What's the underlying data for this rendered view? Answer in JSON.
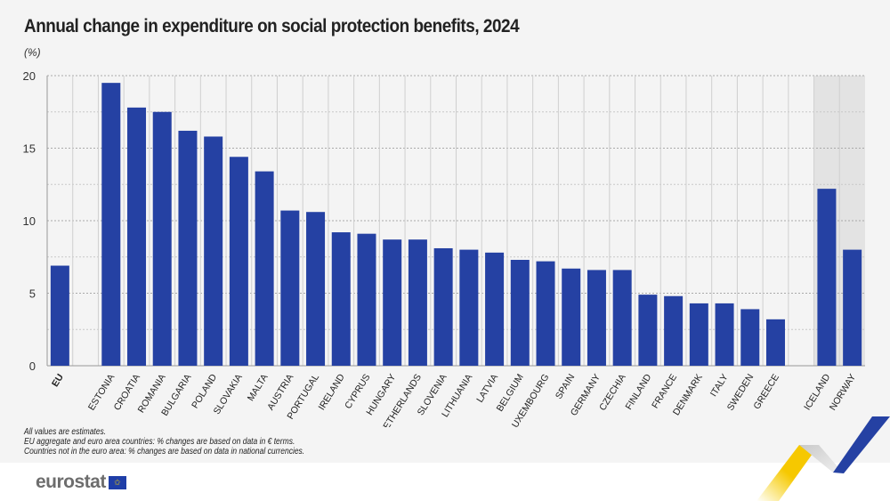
{
  "chart_data": {
    "type": "bar",
    "title": "Annual change in expenditure on social protection benefits, 2024",
    "ylabel": "(%)",
    "ylim": [
      0,
      20
    ],
    "yticks": [
      0,
      5,
      10,
      15,
      20
    ],
    "grid": true,
    "bar_color": "#2541a3",
    "highlight_band_color": "#e3e3e3",
    "categories": [
      "EU",
      "",
      "ESTONIA",
      "CROATIA",
      "ROMANIA",
      "BULGARIA",
      "POLAND",
      "SLOVAKIA",
      "MALTA",
      "AUSTRIA",
      "PORTUGAL",
      "IRELAND",
      "CYPRUS",
      "HUNGARY",
      "NETHERLANDS",
      "SLOVENIA",
      "LITHUANIA",
      "LATVIA",
      "BELGIUM",
      "LUXEMBOURG",
      "SPAIN",
      "GERMANY",
      "CZECHIA",
      "FINLAND",
      "FRANCE",
      "DENMARK",
      "ITALY",
      "SWEDEN",
      "GREECE",
      "",
      "ICELAND",
      "NORWAY"
    ],
    "values": [
      6.9,
      null,
      19.5,
      17.8,
      17.5,
      16.2,
      15.8,
      14.4,
      13.4,
      10.7,
      10.6,
      9.2,
      9.1,
      8.7,
      8.7,
      8.1,
      8.0,
      7.8,
      7.3,
      7.2,
      6.7,
      6.6,
      6.6,
      4.9,
      4.8,
      4.3,
      4.3,
      3.9,
      3.2,
      null,
      12.2,
      8.0
    ],
    "shaded_categories": [
      "ICELAND",
      "NORWAY"
    ]
  },
  "notes": [
    "All values are estimates.",
    "EU aggregate and euro area countries: % changes are based on data in € terms.",
    "Countries not in the euro area: % changes are based on data in national currencies."
  ],
  "logo": {
    "text": "eurostat",
    "flag_icon": "eu-flag-icon"
  }
}
